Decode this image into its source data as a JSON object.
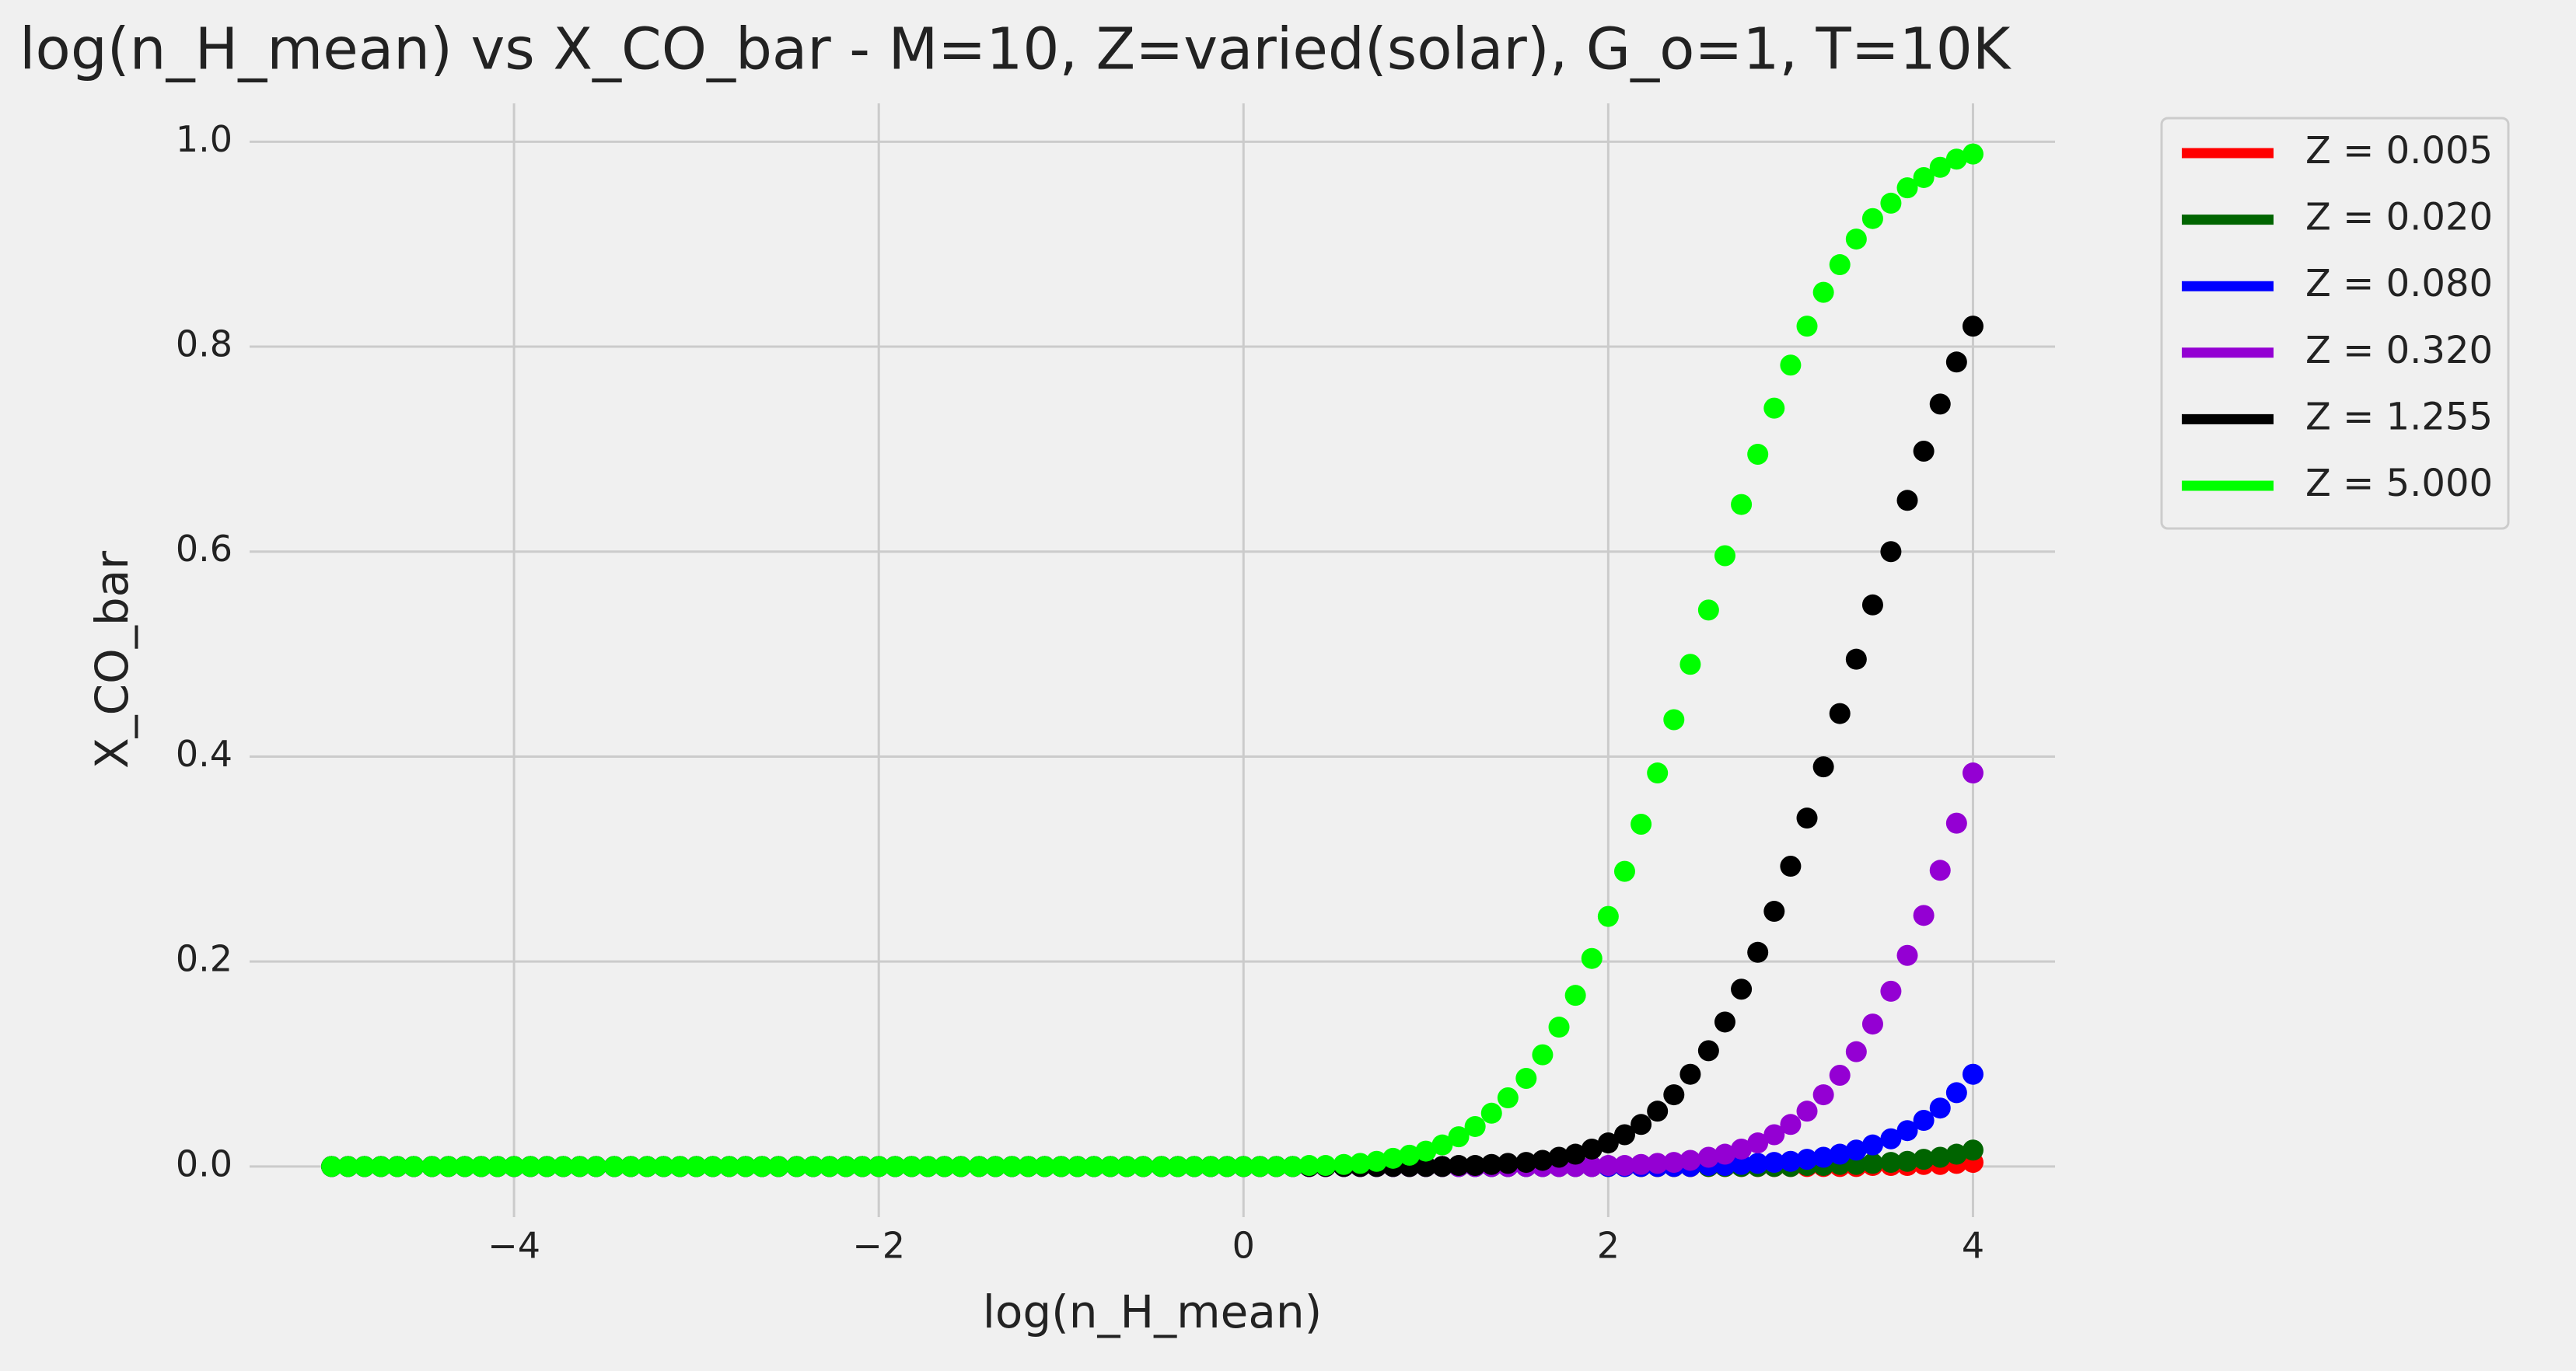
{
  "chart_data": {
    "type": "scatter",
    "title": "log(n_H_mean) vs X_CO_bar - M=10, Z=varied(solar), G_o=1, T=10K",
    "x_label": "log(n_H_mean)",
    "y_label": "X_CO_bar",
    "xlim": [
      -5.45,
      4.45
    ],
    "ylim": [
      -0.0494,
      1.0374
    ],
    "xticks": [
      {
        "value": -4,
        "label": "−4"
      },
      {
        "value": -2,
        "label": "−2"
      },
      0,
      2,
      4
    ],
    "yticks": [
      {
        "value": 0,
        "label": "0.0"
      },
      0.2,
      0.4,
      0.6,
      0.8,
      {
        "value": 1,
        "label": "1.0"
      }
    ],
    "grid": true,
    "legend": "outside-upper-right",
    "x": [
      -5,
      -4.91,
      -4.82,
      -4.73,
      -4.64,
      -4.55,
      -4.45,
      -4.36,
      -4.27,
      -4.18,
      -4.09,
      -4,
      -3.91,
      -3.82,
      -3.73,
      -3.64,
      -3.55,
      -3.45,
      -3.36,
      -3.27,
      -3.18,
      -3.09,
      -3,
      -2.91,
      -2.82,
      -2.73,
      -2.64,
      -2.55,
      -2.45,
      -2.36,
      -2.27,
      -2.18,
      -2.09,
      -2,
      -1.91,
      -1.82,
      -1.73,
      -1.64,
      -1.55,
      -1.45,
      -1.36,
      -1.27,
      -1.18,
      -1.09,
      -1,
      -0.91,
      -0.82,
      -0.73,
      -0.64,
      -0.55,
      -0.45,
      -0.36,
      -0.27,
      -0.18,
      -0.09,
      0,
      0.09,
      0.18,
      0.27,
      0.36,
      0.45,
      0.55,
      0.64,
      0.73,
      0.82,
      0.91,
      1,
      1.09,
      1.18,
      1.27,
      1.36,
      1.45,
      1.55,
      1.64,
      1.73,
      1.82,
      1.91,
      2,
      2.09,
      2.18,
      2.27,
      2.36,
      2.45,
      2.55,
      2.64,
      2.73,
      2.82,
      2.91,
      3,
      3.09,
      3.18,
      3.27,
      3.36,
      3.45,
      3.55,
      3.64,
      3.73,
      3.82,
      3.91,
      4
    ],
    "series": [
      {
        "name": "Z = 0.005",
        "color": "#ff0000",
        "values": [
          0,
          0,
          0,
          0,
          0,
          0,
          0,
          0,
          0,
          0,
          0,
          0,
          0,
          0,
          0,
          0,
          0,
          0,
          0,
          0,
          0,
          0,
          0,
          0,
          0,
          0,
          0,
          0,
          0,
          0,
          0,
          0,
          0,
          0,
          0,
          0,
          0,
          0,
          0,
          0,
          0,
          0,
          0,
          0,
          0,
          0,
          0,
          0,
          0,
          0,
          0,
          0,
          0,
          0,
          0,
          0,
          0,
          0,
          0,
          0,
          0,
          0,
          0,
          0,
          0,
          0,
          0,
          0,
          0,
          0,
          0,
          0,
          0,
          0,
          0,
          0,
          0,
          0,
          0,
          0,
          0,
          0,
          0,
          0,
          0,
          0,
          0,
          0,
          0,
          0,
          0,
          0,
          0,
          0.001,
          0.001,
          0.001,
          0.002,
          0.002,
          0.003,
          0.004
        ]
      },
      {
        "name": "Z = 0.020",
        "color": "#006400",
        "values": [
          0,
          0,
          0,
          0,
          0,
          0,
          0,
          0,
          0,
          0,
          0,
          0,
          0,
          0,
          0,
          0,
          0,
          0,
          0,
          0,
          0,
          0,
          0,
          0,
          0,
          0,
          0,
          0,
          0,
          0,
          0,
          0,
          0,
          0,
          0,
          0,
          0,
          0,
          0,
          0,
          0,
          0,
          0,
          0,
          0,
          0,
          0,
          0,
          0,
          0,
          0,
          0,
          0,
          0,
          0,
          0,
          0,
          0,
          0,
          0,
          0,
          0,
          0,
          0,
          0,
          0,
          0,
          0,
          0,
          0,
          0,
          0,
          0,
          0,
          0,
          0,
          0,
          0,
          0,
          0,
          0,
          0,
          0,
          0,
          0,
          0,
          0,
          0,
          0,
          0.001,
          0.001,
          0.002,
          0.002,
          0.003,
          0.004,
          0.005,
          0.007,
          0.009,
          0.012,
          0.016
        ]
      },
      {
        "name": "Z = 0.080",
        "color": "#0000ff",
        "values": [
          0,
          0,
          0,
          0,
          0,
          0,
          0,
          0,
          0,
          0,
          0,
          0,
          0,
          0,
          0,
          0,
          0,
          0,
          0,
          0,
          0,
          0,
          0,
          0,
          0,
          0,
          0,
          0,
          0,
          0,
          0,
          0,
          0,
          0,
          0,
          0,
          0,
          0,
          0,
          0,
          0,
          0,
          0,
          0,
          0,
          0,
          0,
          0,
          0,
          0,
          0,
          0,
          0,
          0,
          0,
          0,
          0,
          0,
          0,
          0,
          0,
          0,
          0,
          0,
          0,
          0,
          0,
          0,
          0,
          0,
          0,
          0,
          0,
          0,
          0,
          0,
          0,
          0,
          0,
          0,
          0,
          0,
          0,
          0.001,
          0.001,
          0.002,
          0.003,
          0.004,
          0.005,
          0.007,
          0.009,
          0.012,
          0.016,
          0.021,
          0.027,
          0.035,
          0.045,
          0.057,
          0.072,
          0.09
        ]
      },
      {
        "name": "Z = 0.320",
        "color": "#9400d3",
        "values": [
          0,
          0,
          0,
          0,
          0,
          0,
          0,
          0,
          0,
          0,
          0,
          0,
          0,
          0,
          0,
          0,
          0,
          0,
          0,
          0,
          0,
          0,
          0,
          0,
          0,
          0,
          0,
          0,
          0,
          0,
          0,
          0,
          0,
          0,
          0,
          0,
          0,
          0,
          0,
          0,
          0,
          0,
          0,
          0,
          0,
          0,
          0,
          0,
          0,
          0,
          0,
          0,
          0,
          0,
          0,
          0,
          0,
          0,
          0,
          0,
          0,
          0,
          0,
          0,
          0,
          0,
          0,
          0,
          0,
          0,
          0,
          0,
          0,
          0,
          0,
          0,
          0,
          0.001,
          0.001,
          0.002,
          0.003,
          0.004,
          0.006,
          0.009,
          0.012,
          0.017,
          0.023,
          0.031,
          0.041,
          0.054,
          0.07,
          0.089,
          0.112,
          0.139,
          0.171,
          0.206,
          0.245,
          0.289,
          0.335,
          0.384
        ]
      },
      {
        "name": "Z = 1.255",
        "color": "#000000",
        "values": [
          0,
          0,
          0,
          0,
          0,
          0,
          0,
          0,
          0,
          0,
          0,
          0,
          0,
          0,
          0,
          0,
          0,
          0,
          0,
          0,
          0,
          0,
          0,
          0,
          0,
          0,
          0,
          0,
          0,
          0,
          0,
          0,
          0,
          0,
          0,
          0,
          0,
          0,
          0,
          0,
          0,
          0,
          0,
          0,
          0,
          0,
          0,
          0,
          0,
          0,
          0,
          0,
          0,
          0,
          0,
          0,
          0,
          0,
          0,
          0,
          0,
          0,
          0,
          0,
          0,
          0,
          0,
          0,
          0.001,
          0.001,
          0.002,
          0.003,
          0.004,
          0.006,
          0.009,
          0.012,
          0.017,
          0.023,
          0.031,
          0.041,
          0.054,
          0.07,
          0.09,
          0.113,
          0.141,
          0.173,
          0.209,
          0.249,
          0.293,
          0.34,
          0.39,
          0.442,
          0.495,
          0.548,
          0.6,
          0.65,
          0.698,
          0.744,
          0.785,
          0.82
        ]
      },
      {
        "name": "Z = 5.000",
        "color": "#00ff00",
        "values": [
          0,
          0,
          0,
          0,
          0,
          0,
          0,
          0,
          0,
          0,
          0,
          0,
          0,
          0,
          0,
          0,
          0,
          0,
          0,
          0,
          0,
          0,
          0,
          0,
          0,
          0,
          0,
          0,
          0,
          0,
          0,
          0,
          0,
          0,
          0,
          0,
          0,
          0,
          0,
          0,
          0,
          0,
          0,
          0,
          0,
          0,
          0,
          0,
          0,
          0,
          0,
          0,
          0,
          0,
          0,
          0,
          0,
          0,
          0,
          0.001,
          0.001,
          0.002,
          0.003,
          0.005,
          0.008,
          0.011,
          0.015,
          0.021,
          0.029,
          0.039,
          0.052,
          0.067,
          0.086,
          0.109,
          0.136,
          0.167,
          0.203,
          0.244,
          0.288,
          0.334,
          0.384,
          0.436,
          0.49,
          0.543,
          0.596,
          0.646,
          0.695,
          0.74,
          0.782,
          0.82,
          0.853,
          0.88,
          0.905,
          0.925,
          0.94,
          0.955,
          0.965,
          0.975,
          0.983,
          0.988
        ]
      }
    ]
  }
}
